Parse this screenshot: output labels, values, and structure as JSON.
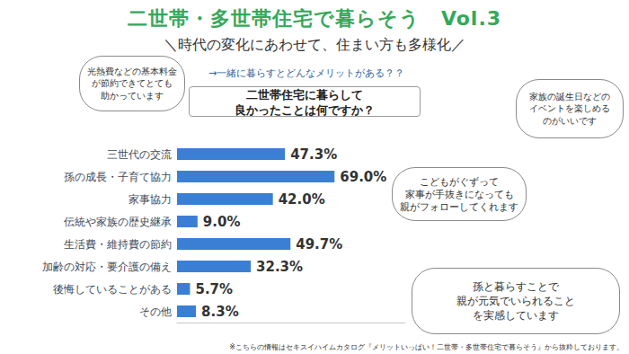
{
  "header": {
    "title": "二世帯・多世帯住宅で暮らそう　Vol.3",
    "subtitle": "＼時代の変化にあわせて、住まい方も多様化／",
    "lead": "→一緒に暮らすとどんなメリットがある？？"
  },
  "chart_data": {
    "type": "bar",
    "title": "二世帯住宅に暮らして\n良かったことは何ですか？",
    "categories": [
      "三世代の交流",
      "孫の成長・子育て協力",
      "家事協力",
      "伝統や家族の歴史継承",
      "生活費・維持費の節約",
      "加齢の対応・要介護の備え",
      "後悔していることがある",
      "その他"
    ],
    "values": [
      47.3,
      69.0,
      42.0,
      9.0,
      49.7,
      32.3,
      5.7,
      8.3
    ],
    "value_labels": [
      "47.3%",
      "69.0%",
      "42.0%",
      "9.0%",
      "49.7%",
      "32.3%",
      "5.7%",
      "8.3%"
    ],
    "color": "#3b7fd4",
    "orientation": "horizontal",
    "data_labels": true,
    "tick_labels": "y",
    "grid": false,
    "xlim": [
      0,
      100
    ]
  },
  "comments": [
    "光熱費などの基本料金\nが節約できてとても\n助かっています",
    "家族の誕生日などの\nイベントを楽しめる\nのがいいです",
    "こどもがぐずって\n家事が手抜きになっても\n親がフォローしてくれます",
    "孫と暮らすことで\n親が元気でいられること\nを実感しています"
  ],
  "note": "※こちらの情報はセキスイハイムカタログ『メリットいっぱい！二世帯・多世帯住宅で暮らそう』から抜粋しております。"
}
